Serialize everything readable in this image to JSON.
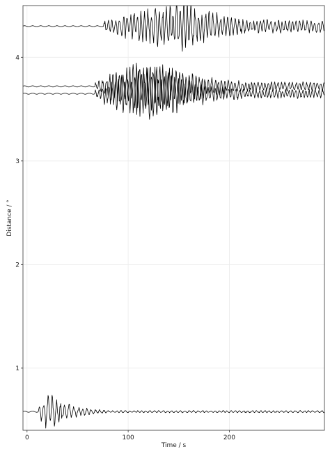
{
  "chart_data": {
    "type": "line",
    "title": "",
    "xlabel": "Time / s",
    "ylabel": "Distance / °",
    "xlim": [
      -4,
      294
    ],
    "ylim": [
      0.4,
      4.5
    ],
    "xticks": [
      0,
      100,
      200
    ],
    "yticks": [
      1,
      2,
      3,
      4
    ],
    "grid": true,
    "legend": "none",
    "series": [
      {
        "distance": 0.58,
        "start": -4,
        "onset": 11,
        "quiet_amp": 0.006,
        "peak": 0.21,
        "peak_time": 20,
        "decay": 22,
        "floor": 0.012,
        "grow": 0.0,
        "period": 4.5
      },
      {
        "distance": 3.65,
        "start": -4,
        "onset": 67,
        "quiet_amp": 0.006,
        "peak": 0.3,
        "peak_time": 122,
        "decay": 55,
        "floor": 0.05,
        "grow": 0.0,
        "period": 3.5
      },
      {
        "distance": 3.72,
        "start": -4,
        "onset": 67,
        "quiet_amp": 0.006,
        "peak": 0.3,
        "peak_time": 125,
        "decay": 55,
        "floor": 0.05,
        "grow": 0.0,
        "period": 3.5
      },
      {
        "distance": 4.3,
        "start": -4,
        "onset": 76,
        "quiet_amp": 0.006,
        "peak": 0.28,
        "peak_time": 160,
        "decay": 40,
        "floor": 0.07,
        "grow": 0.0,
        "period": 3.8
      }
    ]
  }
}
